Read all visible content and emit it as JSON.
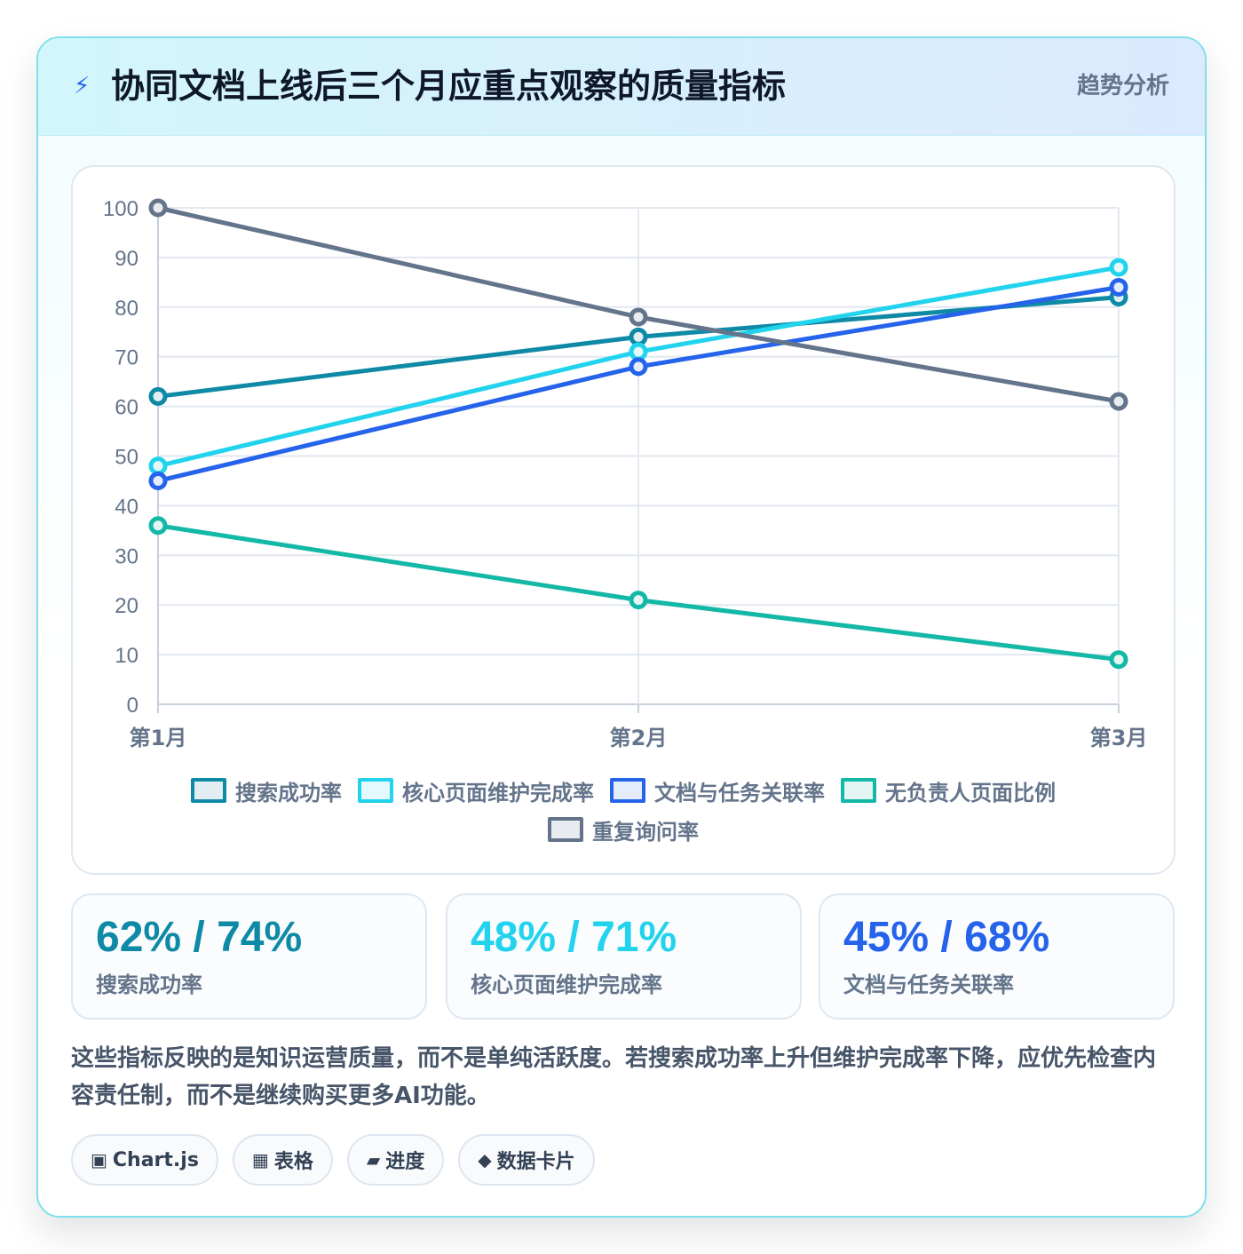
{
  "header": {
    "icon": "lightning-icon",
    "title": "协同文档上线后三个月应重点观察的质量指标",
    "tag": "趋势分析"
  },
  "chart_data": {
    "type": "line",
    "title": "",
    "xlabel": "",
    "ylabel": "",
    "categories": [
      "第1月",
      "第2月",
      "第3月"
    ],
    "ylim": [
      0,
      100
    ],
    "yticks": [
      0,
      10,
      20,
      30,
      40,
      50,
      60,
      70,
      80,
      90,
      100
    ],
    "grid": true,
    "legend_position": "bottom",
    "series": [
      {
        "name": "搜索成功率",
        "values": [
          62,
          74,
          82
        ],
        "color": "#0e8aa6",
        "fill": "#e2eef2"
      },
      {
        "name": "核心页面维护完成率",
        "values": [
          48,
          71,
          88
        ],
        "color": "#22d3ee",
        "fill": "#e4f9fc"
      },
      {
        "name": "文档与任务关联率",
        "values": [
          45,
          68,
          84
        ],
        "color": "#2563eb",
        "fill": "#e5ecfb"
      },
      {
        "name": "无负责人页面比例",
        "values": [
          36,
          21,
          9
        ],
        "color": "#14b8a6",
        "fill": "#e3f6f3"
      },
      {
        "name": "重复询问率",
        "values": [
          100,
          78,
          61
        ],
        "color": "#64748b",
        "fill": "#e8ebef"
      }
    ]
  },
  "stats": [
    {
      "value": "62% / 74%",
      "label": "搜索成功率",
      "color": "#0e8aa6"
    },
    {
      "value": "48% / 71%",
      "label": "核心页面维护完成率",
      "color": "#22d3ee"
    },
    {
      "value": "45% / 68%",
      "label": "文档与任务关联率",
      "color": "#2563eb"
    }
  ],
  "note": "这些指标反映的是知识运营质量，而不是单纯活跃度。若搜索成功率上升但维护完成率下降，应优先检查内容责任制，而不是继续购买更多AI功能。",
  "chips": [
    {
      "icon": "▣",
      "icon_name": "square-icon",
      "label": "Chart.js"
    },
    {
      "icon": "▦",
      "icon_name": "table-icon",
      "label": "表格"
    },
    {
      "icon": "▰",
      "icon_name": "progress-icon",
      "label": "进度"
    },
    {
      "icon": "◆",
      "icon_name": "diamond-icon",
      "label": "数据卡片"
    }
  ]
}
